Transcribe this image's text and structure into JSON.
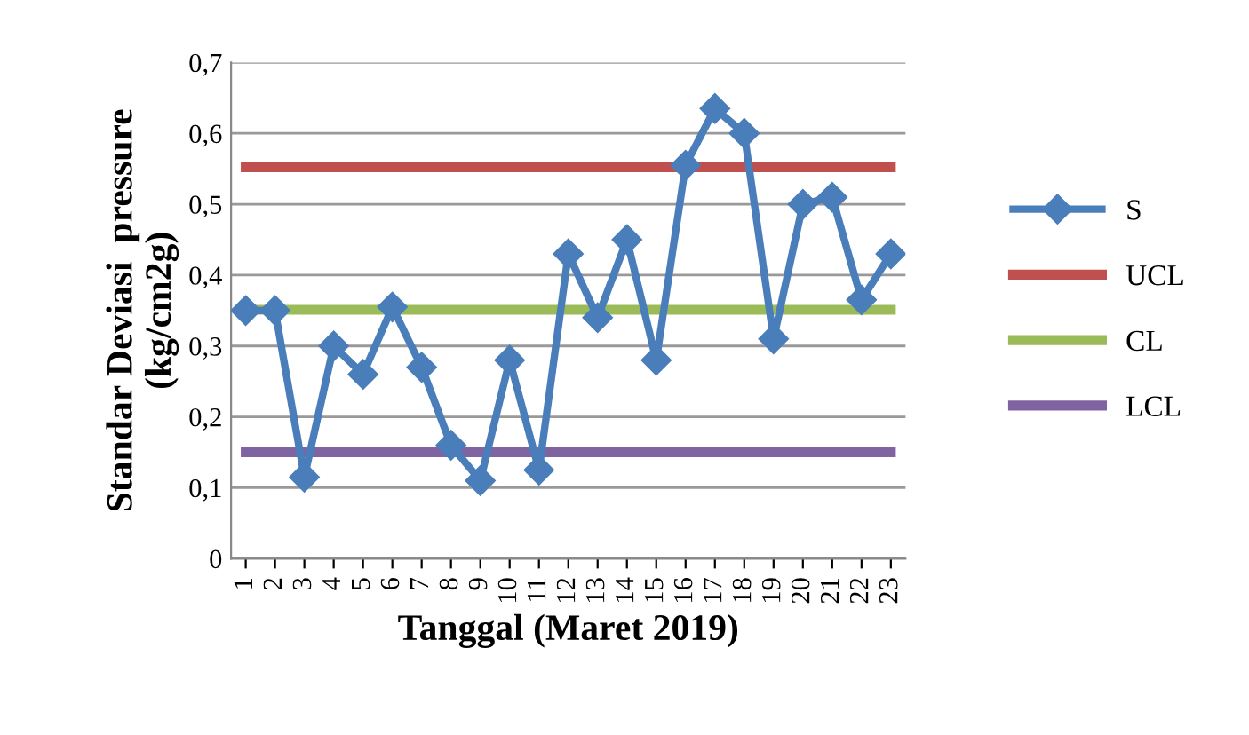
{
  "chart_data": {
    "type": "line",
    "xlabel": "Tanggal (Maret 2019)",
    "ylabel": "Standar Deviasi  pressure\n(kg/cm2g)",
    "categories": [
      "1",
      "2",
      "3",
      "4",
      "5",
      "6",
      "7",
      "8",
      "9",
      "10",
      "11",
      "12",
      "13",
      "14",
      "15",
      "16",
      "17",
      "18",
      "19",
      "20",
      "21",
      "22",
      "23"
    ],
    "series": [
      {
        "name": "S",
        "color": "#4a7ebb",
        "marker": "diamond",
        "values": [
          0.35,
          0.35,
          0.115,
          0.3,
          0.26,
          0.355,
          0.27,
          0.16,
          0.11,
          0.28,
          0.125,
          0.43,
          0.34,
          0.45,
          0.28,
          0.555,
          0.635,
          0.6,
          0.31,
          0.5,
          0.51,
          0.365,
          0.43
        ]
      },
      {
        "name": "UCL",
        "color": "#c0504d",
        "marker": "none",
        "values": [
          0.552,
          0.552,
          0.552,
          0.552,
          0.552,
          0.552,
          0.552,
          0.552,
          0.552,
          0.552,
          0.552,
          0.552,
          0.552,
          0.552,
          0.552,
          0.552,
          0.552,
          0.552,
          0.552,
          0.552,
          0.552,
          0.552,
          0.552
        ]
      },
      {
        "name": "CL",
        "color": "#9bbb59",
        "marker": "none",
        "values": [
          0.351,
          0.351,
          0.351,
          0.351,
          0.351,
          0.351,
          0.351,
          0.351,
          0.351,
          0.351,
          0.351,
          0.351,
          0.351,
          0.351,
          0.351,
          0.351,
          0.351,
          0.351,
          0.351,
          0.351,
          0.351,
          0.351,
          0.351
        ]
      },
      {
        "name": "LCL",
        "color": "#8064a2",
        "marker": "none",
        "values": [
          0.15,
          0.15,
          0.15,
          0.15,
          0.15,
          0.15,
          0.15,
          0.15,
          0.15,
          0.15,
          0.15,
          0.15,
          0.15,
          0.15,
          0.15,
          0.15,
          0.15,
          0.15,
          0.15,
          0.15,
          0.15,
          0.15,
          0.15
        ]
      }
    ],
    "ylim": [
      0,
      0.7
    ],
    "yticks": [
      {
        "value": 0,
        "label": "0"
      },
      {
        "value": 0.1,
        "label": "0,1"
      },
      {
        "value": 0.2,
        "label": "0,2"
      },
      {
        "value": 0.3,
        "label": "0,3"
      },
      {
        "value": 0.4,
        "label": "0,4"
      },
      {
        "value": 0.5,
        "label": "0,5"
      },
      {
        "value": 0.6,
        "label": "0,6"
      },
      {
        "value": 0.7,
        "label": "0,7"
      }
    ],
    "grid": "y",
    "legend": "right",
    "line_style": "solid"
  }
}
